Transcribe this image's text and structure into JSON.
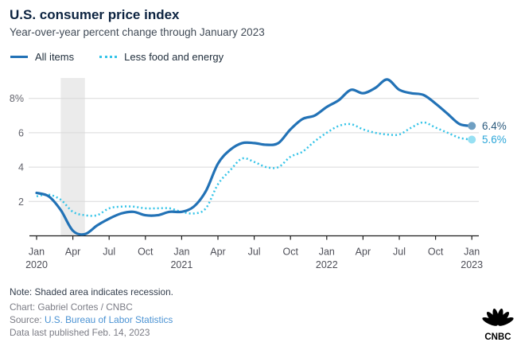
{
  "header": {
    "title": "U.S. consumer price index",
    "subtitle": "Year-over-year percent change through January 2023"
  },
  "footer": {
    "note": "Note: Shaded area indicates recession.",
    "credit": "Chart: Gabriel Cortes / CNBC",
    "source_prefix": "Source: ",
    "source_link": "U.S. Bureau of Labor Statistics",
    "link_color": "#4a92d3",
    "published": "Data last published Feb. 14, 2023",
    "logo_text": "CNBC"
  },
  "chart_data": {
    "type": "line",
    "title": "U.S. consumer price index",
    "subtitle": "Year-over-year percent change through January 2023",
    "x_unit": "month",
    "x_start": "Jan 2020",
    "x_end": "Jan 2023",
    "ylim": [
      0,
      9.6
    ],
    "grid": "horizontal",
    "legend_position": "top-left",
    "y_ticks": [
      {
        "value": 2,
        "label": "2"
      },
      {
        "value": 4,
        "label": "4"
      },
      {
        "value": 6,
        "label": "6"
      },
      {
        "value": 8,
        "label": "8%"
      }
    ],
    "x_ticks": [
      {
        "index": 0,
        "label": "Jan",
        "year": "2020"
      },
      {
        "index": 3,
        "label": "Apr"
      },
      {
        "index": 6,
        "label": "Jul"
      },
      {
        "index": 9,
        "label": "Oct"
      },
      {
        "index": 12,
        "label": "Jan",
        "year": "2021"
      },
      {
        "index": 15,
        "label": "Apr"
      },
      {
        "index": 18,
        "label": "Jul"
      },
      {
        "index": 21,
        "label": "Oct"
      },
      {
        "index": 24,
        "label": "Jan",
        "year": "2022"
      },
      {
        "index": 27,
        "label": "Apr"
      },
      {
        "index": 30,
        "label": "Jul"
      },
      {
        "index": 33,
        "label": "Oct"
      },
      {
        "index": 36,
        "label": "Jan",
        "year": "2023"
      }
    ],
    "recession_band": {
      "from_index": 2,
      "to_index": 4,
      "color": "#ebebeb"
    },
    "series": [
      {
        "name": "All items",
        "style": "solid",
        "color": "#2272b6",
        "dot_color": "#6f9fc2",
        "label_color": "#2b5a7d",
        "end_label": "6.4%",
        "values": [
          2.5,
          2.3,
          1.5,
          0.3,
          0.1,
          0.6,
          1.0,
          1.3,
          1.4,
          1.2,
          1.2,
          1.4,
          1.4,
          1.7,
          2.6,
          4.2,
          5.0,
          5.4,
          5.4,
          5.3,
          5.4,
          6.2,
          6.8,
          7.0,
          7.5,
          7.9,
          8.5,
          8.3,
          8.6,
          9.1,
          8.5,
          8.3,
          8.2,
          7.7,
          7.1,
          6.5,
          6.4
        ]
      },
      {
        "name": "Less food and energy",
        "style": "dotted",
        "color": "#35c4e8",
        "dot_color": "#97e0f3",
        "label_color": "#2ba6d9",
        "end_label": "5.6%",
        "values": [
          2.3,
          2.4,
          2.1,
          1.4,
          1.2,
          1.2,
          1.6,
          1.7,
          1.7,
          1.6,
          1.6,
          1.6,
          1.4,
          1.3,
          1.6,
          3.0,
          3.8,
          4.5,
          4.3,
          4.0,
          4.0,
          4.6,
          4.9,
          5.5,
          6.0,
          6.4,
          6.5,
          6.2,
          6.0,
          5.9,
          5.9,
          6.3,
          6.6,
          6.3,
          6.0,
          5.7,
          5.6
        ]
      }
    ]
  }
}
